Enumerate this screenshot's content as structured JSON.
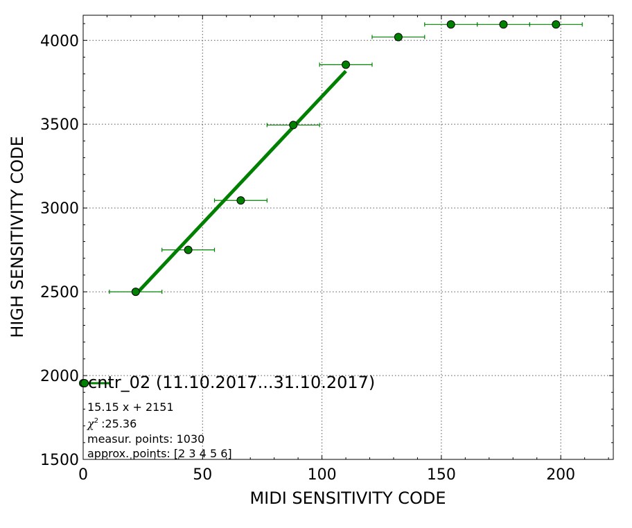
{
  "chart_data": {
    "type": "scatter",
    "xlabel": "MIDI SENSITIVITY CODE",
    "ylabel": "HIGH SENSITIVITY CODE",
    "xlim": [
      0,
      222
    ],
    "ylim": [
      1500,
      4150
    ],
    "x_ticks": [
      0,
      50,
      100,
      150,
      200
    ],
    "y_ticks": [
      1500,
      2000,
      2500,
      3000,
      3500,
      4000
    ],
    "grid": true,
    "colors": {
      "series": "#008000",
      "marker_edge": "#000000"
    },
    "series": [
      {
        "type": "errorbar",
        "x": [
          0,
          22,
          44,
          66,
          88,
          110,
          132,
          154,
          176,
          198
        ],
        "y": [
          1955,
          2500,
          2750,
          3045,
          3495,
          3855,
          4020,
          4095,
          4095,
          4095
        ],
        "xerr": [
          11,
          11,
          11,
          11,
          11,
          11,
          11,
          11,
          11,
          11
        ]
      },
      {
        "type": "fit_line",
        "x": [
          22,
          110
        ],
        "y": [
          2484,
          3817
        ]
      }
    ],
    "legend": {
      "title": "cntr_02 (11.10.2017...31.10.2017)",
      "lines": [
        "15.15 x + 2151",
        ":25.36",
        "measur. points: 1030",
        "approx. points: [2 3 4 5 6]"
      ],
      "chi_symbol": "χ",
      "chi_exponent": "2"
    }
  }
}
